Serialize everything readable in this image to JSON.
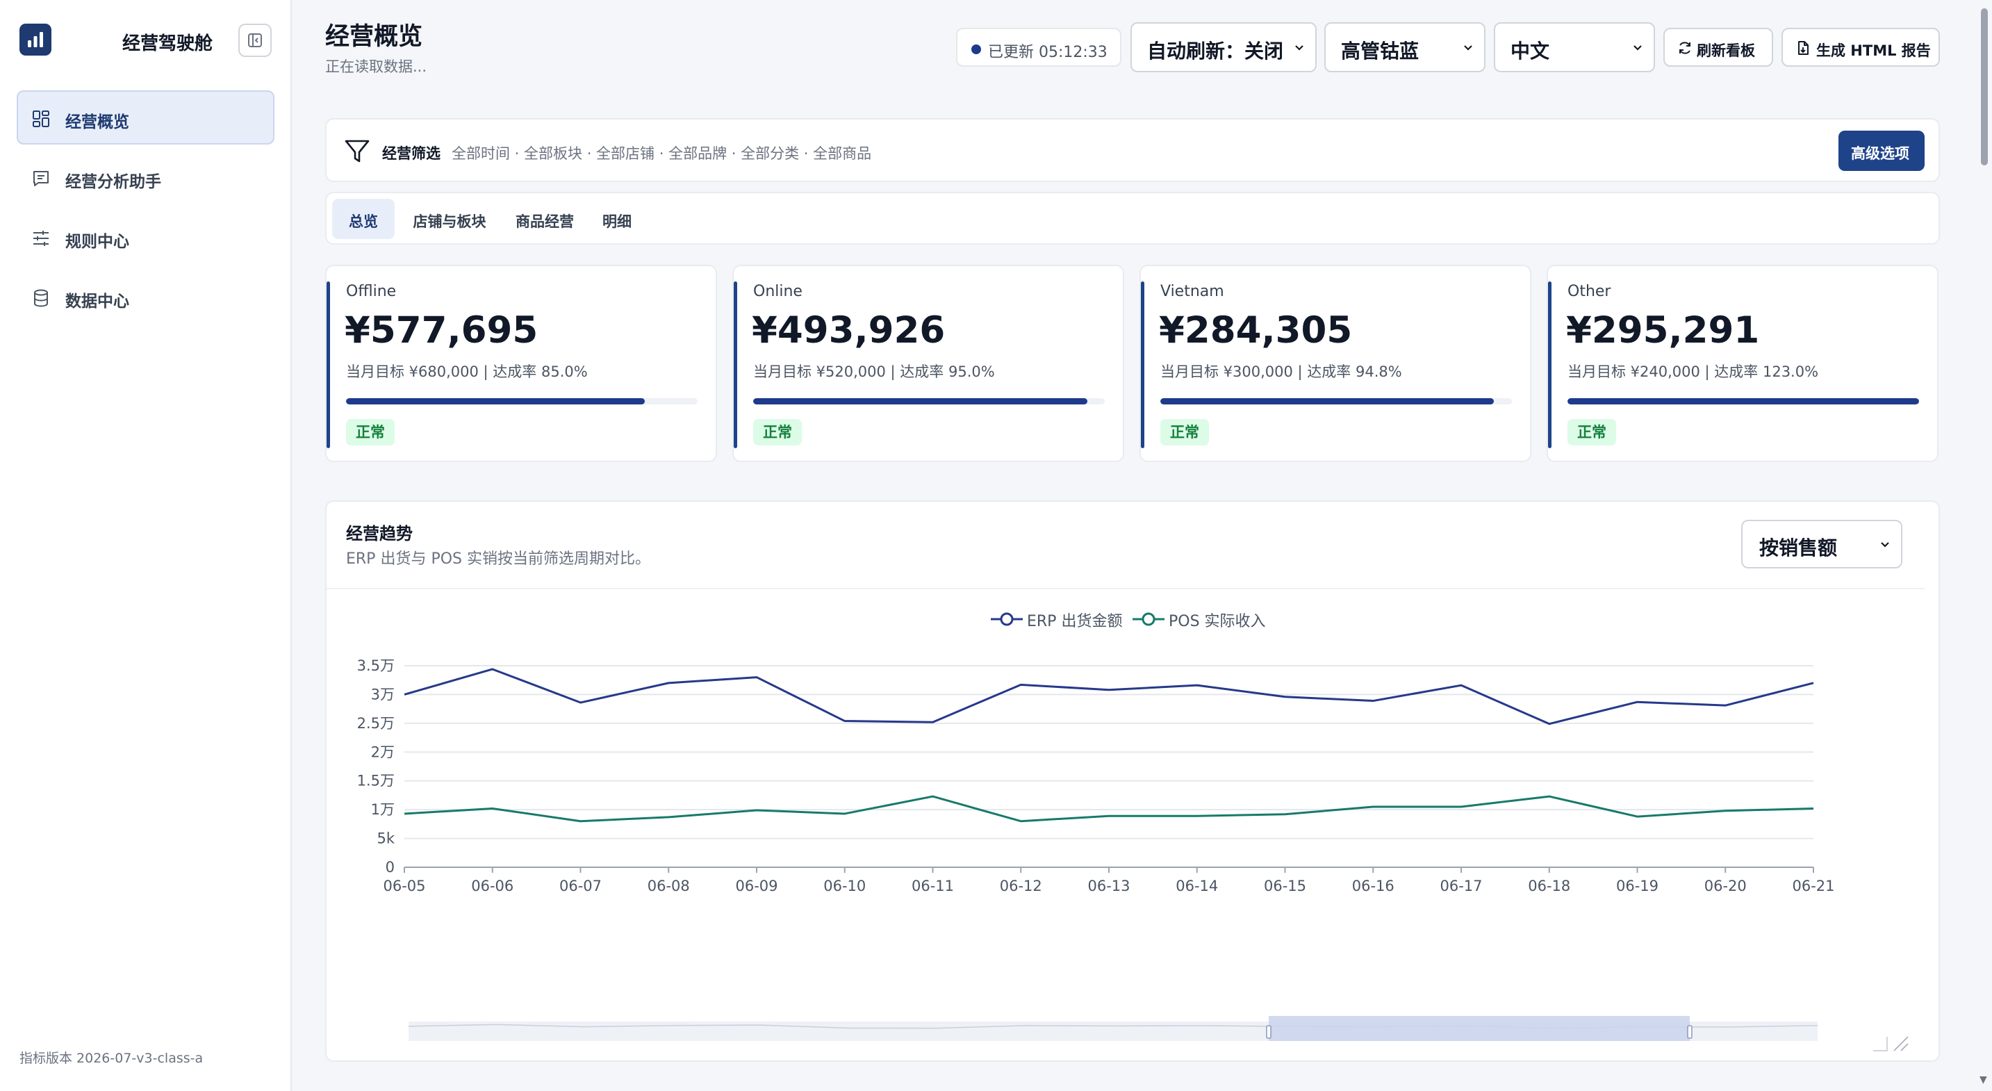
{
  "sidebar": {
    "brand": "经营驾驶舱",
    "items": [
      {
        "label": "经营概览",
        "icon": "grid-icon",
        "active": true
      },
      {
        "label": "经营分析助手",
        "icon": "chat-icon"
      },
      {
        "label": "规则中心",
        "icon": "sliders-icon"
      },
      {
        "label": "数据中心",
        "icon": "database-icon"
      }
    ],
    "version": "指标版本 2026-07-v3-class-a"
  },
  "header": {
    "title": "经营概览",
    "subtitle": "正在读取数据...",
    "updated": "已更新 05:12:33",
    "auto_refresh": "自动刷新：关闭",
    "theme": "高管钴蓝",
    "language": "中文",
    "refresh_button": "刷新看板",
    "report_button": "生成 HTML 报告"
  },
  "filter": {
    "title": "经营筛选",
    "summary": "全部时间 · 全部板块 · 全部店铺 · 全部品牌 · 全部分类 · 全部商品",
    "advanced_button": "高级选项"
  },
  "tabs": [
    "总览",
    "店铺与板块",
    "商品经营",
    "明细"
  ],
  "active_tab": 0,
  "kpis": [
    {
      "name": "Offline",
      "value": "¥577,695",
      "meta": "当月目标 ¥680,000 | 达成率 85.0%",
      "progress": 0.85,
      "status": "正常"
    },
    {
      "name": "Online",
      "value": "¥493,926",
      "meta": "当月目标 ¥520,000 | 达成率 95.0%",
      "progress": 0.95,
      "status": "正常"
    },
    {
      "name": "Vietnam",
      "value": "¥284,305",
      "meta": "当月目标 ¥300,000 | 达成率 94.8%",
      "progress": 0.948,
      "status": "正常"
    },
    {
      "name": "Other",
      "value": "¥295,291",
      "meta": "当月目标 ¥240,000 | 达成率 123.0%",
      "progress": 1.0,
      "status": "正常"
    }
  ],
  "trend": {
    "title": "经营趋势",
    "subtitle": "ERP 出货与 POS 实销按当前筛选周期对比。",
    "metric": "按销售额"
  },
  "colors": {
    "accent": "#1e4389",
    "erp": "#26398a",
    "pos": "#177a6b"
  },
  "chart_data": {
    "type": "line",
    "x": [
      "06-05",
      "06-06",
      "06-07",
      "06-08",
      "06-09",
      "06-10",
      "06-11",
      "06-12",
      "06-13",
      "06-14",
      "06-15",
      "06-16",
      "06-17",
      "06-18",
      "06-19",
      "06-20",
      "06-21"
    ],
    "series": [
      {
        "name": "ERP 出货金额",
        "values": [
          30000,
          34400,
          28600,
          32000,
          33000,
          25400,
          25200,
          31700,
          30800,
          31600,
          29600,
          28900,
          31600,
          24900,
          28700,
          28100,
          32000
        ]
      },
      {
        "name": "POS 实际收入",
        "values": [
          9300,
          10200,
          8000,
          8700,
          9900,
          9300,
          12300,
          8000,
          8900,
          8900,
          9200,
          10500,
          10500,
          12300,
          8800,
          9800,
          10200
        ]
      }
    ],
    "yticks": [
      "0",
      "5k",
      "1万",
      "1.5万",
      "2万",
      "2.5万",
      "3万",
      "3.5万"
    ],
    "ylim": [
      0,
      35000
    ],
    "grid": true,
    "legend": "top-center"
  }
}
